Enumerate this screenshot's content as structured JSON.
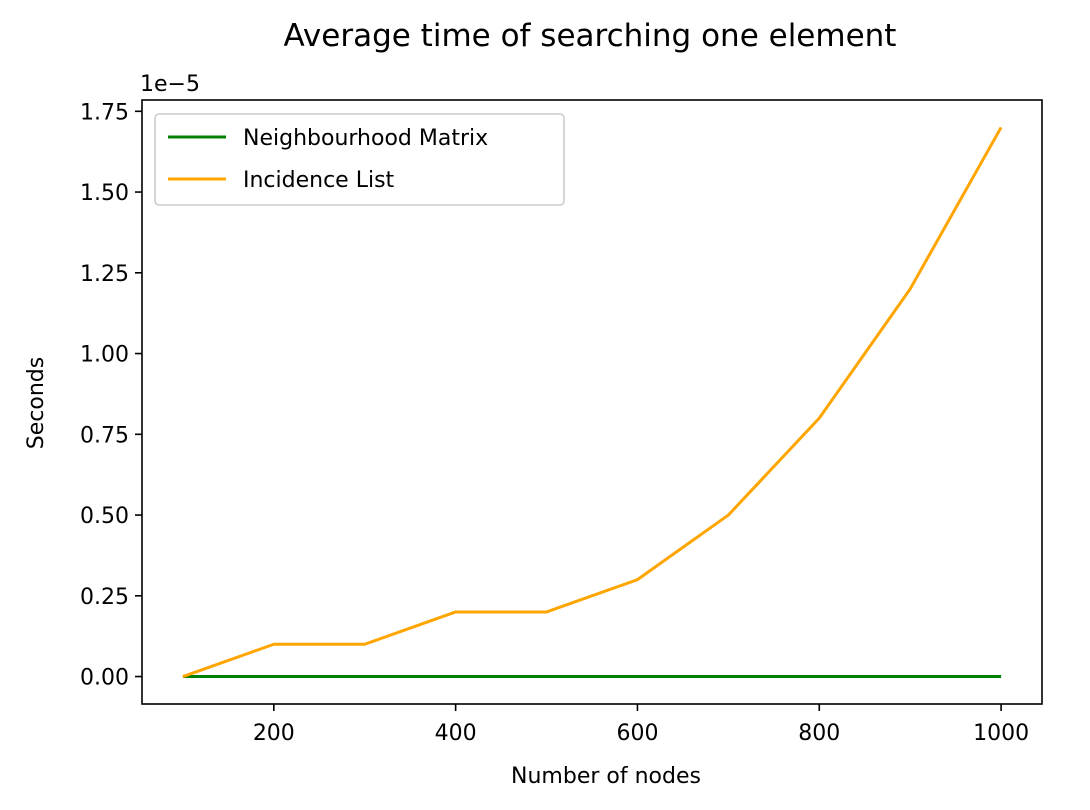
{
  "chart_data": {
    "type": "line",
    "title": "Average time of searching one element",
    "xlabel": "Number of nodes",
    "ylabel": "Seconds",
    "y_offset_label": "1e−5",
    "x": [
      100,
      200,
      300,
      400,
      500,
      600,
      700,
      800,
      900,
      1000
    ],
    "series": [
      {
        "name": "Neighbourhood Matrix",
        "color": "#008000",
        "values": [
          0,
          0,
          0,
          0,
          0,
          0,
          0,
          0,
          0,
          0
        ]
      },
      {
        "name": "Incidence List",
        "color": "#ffa500",
        "values": [
          0.0,
          0.1,
          0.1,
          0.2,
          0.2,
          0.3,
          0.5,
          0.8,
          1.2,
          1.7
        ]
      }
    ],
    "y_scale_multiplier": 1e-05,
    "xlim": [
      55,
      1045
    ],
    "ylim": [
      -0.085,
      1.785
    ],
    "xticks": [
      200,
      400,
      600,
      800,
      1000
    ],
    "xtick_labels": [
      "200",
      "400",
      "600",
      "800",
      "1000"
    ],
    "yticks": [
      0.0,
      0.25,
      0.5,
      0.75,
      1.0,
      1.25,
      1.5,
      1.75
    ],
    "ytick_labels": [
      "0.00",
      "0.25",
      "0.50",
      "0.75",
      "1.00",
      "1.25",
      "1.50",
      "1.75"
    ],
    "legend_position": "upper-left",
    "grid": false
  }
}
